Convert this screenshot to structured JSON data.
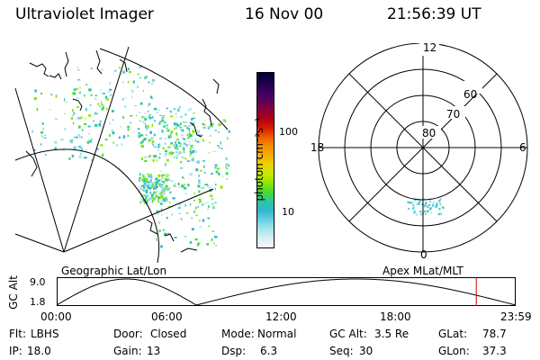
{
  "header": {
    "title": "Ultraviolet Imager",
    "date": "16 Nov 00",
    "time": "21:56:39 UT"
  },
  "geo_panel": {
    "caption": "Geographic Lat/Lon"
  },
  "colorbar": {
    "unit_label": "photon cm⁻²s⁻¹",
    "scale": "log",
    "tick_labels": [
      "100",
      "10"
    ],
    "colors_top_to_bottom": [
      "#000033",
      "#1a0044",
      "#3a0066",
      "#5a005a",
      "#88003a",
      "#b00018",
      "#d81c00",
      "#f05a00",
      "#f78e00",
      "#f4b000",
      "#e8d400",
      "#c8e800",
      "#8ee800",
      "#48d838",
      "#2ac8a0",
      "#30b8d0",
      "#6ad0e0",
      "#a8e4ec",
      "#d8f0f4",
      "#f4fafb"
    ]
  },
  "polar_panel": {
    "caption": "Apex MLat/MLT",
    "mlt_labels": [
      "12",
      "18",
      "6",
      "0"
    ],
    "lat_labels": [
      "60",
      "70",
      "80"
    ]
  },
  "altitude_plot": {
    "ylabel": "GC Alt",
    "y_ticks": [
      "9.0",
      "1.8"
    ],
    "x_ticks": [
      "00:00",
      "06:00",
      "12:00",
      "18:00",
      "23:59"
    ],
    "ylim": [
      1.8,
      9.0
    ],
    "current_time_hours": 21.94,
    "marker_color": "#cc0000"
  },
  "footer": {
    "row1": [
      {
        "label": "Flt:",
        "value": "LBHS"
      },
      {
        "label": "Door:",
        "value": "Closed"
      },
      {
        "label": "Mode:",
        "value": "Normal"
      },
      {
        "label": "GC Alt:",
        "value": "3.5 Re"
      },
      {
        "label": "GLat:",
        "value": "78.7"
      }
    ],
    "row2": [
      {
        "label": "IP:",
        "value": "18.0"
      },
      {
        "label": "Gain:",
        "value": "13"
      },
      {
        "label": "Dsp:",
        "value": "6.3"
      },
      {
        "label": "Seq:",
        "value": "30"
      },
      {
        "label": "GLon:",
        "value": "37.3"
      }
    ]
  }
}
